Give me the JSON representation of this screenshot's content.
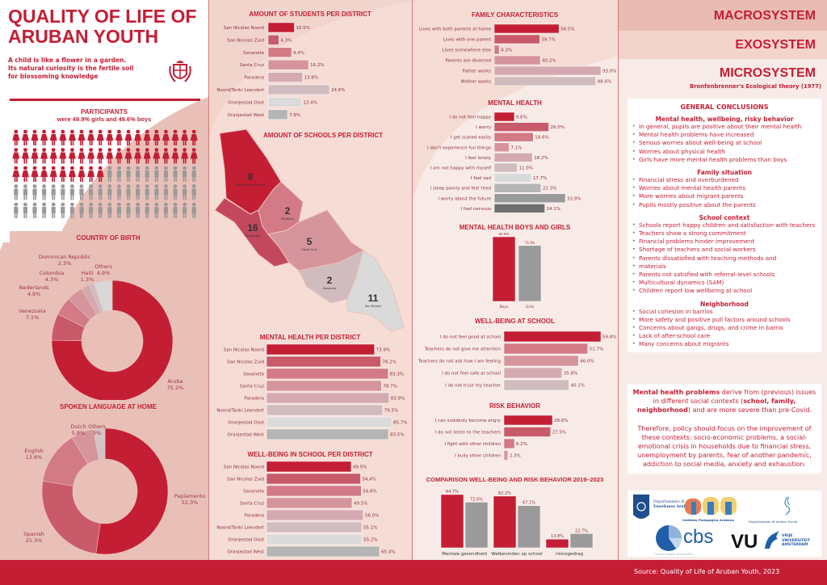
{
  "header": {
    "title_line1": "QUALITY OF LIFE OF",
    "title_line2": "ARUBAN YOUTH",
    "tagline_line1": "A child is like a flower in a garden.",
    "tagline_line2": "Its natural curiosity is the fertile soil",
    "tagline_line3": "for blossoming knowledge",
    "emblem_icon": "aruba-coat-of-arms-icon"
  },
  "participants": {
    "title": "PARTICIPANTS",
    "subtitle": "were 49.9% girls and 49.6% boys",
    "girls_icons": 50,
    "boys_icons": 50,
    "girl_icon": "girl-figure-icon",
    "boy_icon": "boy-figure-icon"
  },
  "colors": {
    "primary": "#c41e35",
    "shade2": "#c85a6a",
    "shade3": "#d27a86",
    "shade4": "#d6949c",
    "shade5": "#d4aab0",
    "shade6": "#d0bcbf",
    "shade7": "#dadada",
    "shade8": "#b5b5b5",
    "grey_mid": "#9a9a9a",
    "grey_dark": "#707070",
    "footer": "#c41e35"
  },
  "systems": {
    "macro": "MACROSYSTEM",
    "exo": "EXOSYSTEM",
    "micro": "MICROSYSTEM",
    "theory": "Bronfenbrenner's Ecological theory (1977)"
  },
  "conclusions": {
    "title": "GENERAL CONCLUSIONS",
    "sections": [
      {
        "heading": "Mental health, wellbeing, risky behavior",
        "items": [
          "In general, pupils are positive about their mental health",
          "Mental health problems have increased",
          "Serious worries about well-being at school",
          "Worries about physical health",
          "Girls have more mental health problems than boys"
        ]
      },
      {
        "heading": "Family situation",
        "items": [
          "Financial stress and overburdened",
          "Worries about mental health parents",
          "More worries about migrant parents",
          "Pupils mostly positive about the parents"
        ]
      },
      {
        "heading": "School context",
        "items": [
          "Schools report happy children and satisfaction with teachers",
          "Teachers show a strong commitment",
          "Financial problems hinder improvement",
          "Shortage of teachers and social workers",
          "Parents dissatisfied with teaching methods and",
          "materials",
          "Parents not satisfied with referral-level schools",
          "Multicultural dynamics (SAM)",
          "Children report low wellbeing at school"
        ]
      },
      {
        "heading": "Neighborhood",
        "items": [
          "Social cohesion in barrios",
          "More safety and positive pull factors around schools",
          "Concerns about gangs, drugs, and crime in barrio",
          "Lack of after-school care",
          "Many concerns about migrants"
        ]
      }
    ]
  },
  "message": {
    "p1_bold1": "Mental health problems",
    "p1_text1": " derive from (previous) issues in different social contexts (",
    "p1_bold2": "school, family, neighborhood",
    "p1_text2": ") and are more severe than pre-Covid.",
    "p2": "Therefore, policy should focus on the improvement of these contexts: socio-economic problems, a social-emotional crisis in households due to financial stress, unemployment by parents, fear of another pandemic, addiction to social media, anxiety and exhaustion."
  },
  "logos": {
    "dea_line1": "Departamento di",
    "dea_line2": "Enseñansa Aruba",
    "ipa": "Instituto Pedagogico Arubano",
    "das": "Departamento di Asunto Social",
    "cbs": "cbs",
    "cbs_sub": "central bureau of statistics",
    "vu": "VU",
    "vu_line1": "VRIJE",
    "vu_line2": "UNIVERSITEIT",
    "vu_line3": "AMSTERDAM"
  },
  "footer": {
    "source": "Source: Quality of Life of Aruban Youth, 2023"
  },
  "map": {
    "title": "AMOUNT OF SCHOOLS PER DISTRICT",
    "regions": [
      {
        "name": "Noord/Tanki Leendert",
        "count": "8"
      },
      {
        "name": "Paradera",
        "count": "2"
      },
      {
        "name": "Oranjestad",
        "count": "16"
      },
      {
        "name": "Santa Cruz",
        "count": "5"
      },
      {
        "name": "Savaneta",
        "count": "2"
      },
      {
        "name": "San Nicolas",
        "count": "11"
      }
    ]
  },
  "chart_data": [
    {
      "id": "birth",
      "type": "pie",
      "title": "COUNTRY OF BIRTH",
      "slices": [
        {
          "label": "Aruba",
          "value": 75.2,
          "display": "75.2%"
        },
        {
          "label": "Venezuela",
          "value": 7.1,
          "display": "7.1%"
        },
        {
          "label": "Nederlands",
          "value": 4.9,
          "display": "4.9%"
        },
        {
          "label": "Colombia",
          "value": 4.3,
          "display": "4.3%"
        },
        {
          "label": "Dominican Republic",
          "value": 2.3,
          "display": "2.3%"
        },
        {
          "label": "Haiti",
          "value": 1.3,
          "display": "1.3%"
        },
        {
          "label": "Others",
          "value": 4.9,
          "display": "4.9%"
        }
      ]
    },
    {
      "id": "language",
      "type": "pie",
      "title": "SPOKEN LANGUAGE AT HOME",
      "slices": [
        {
          "label": "Papiamento",
          "value": 52.3,
          "display": "52.3%"
        },
        {
          "label": "Spanish",
          "value": 25.3,
          "display": "25.3%"
        },
        {
          "label": "English",
          "value": 13.6,
          "display": "13.6%"
        },
        {
          "label": "Dutch",
          "value": 5.8,
          "display": "5.8%"
        },
        {
          "label": "Others",
          "value": 3,
          "display": "3%"
        }
      ]
    },
    {
      "id": "students",
      "type": "bar",
      "orientation": "horizontal",
      "title": "AMOUNT OF STUDENTS PER DISTRICT",
      "categories": [
        "San Nicolas Noord",
        "San Nicolas Zuid",
        "Savaneta",
        "Santa Cruz",
        "Paradera",
        "Noord/Tanki Leendert",
        "Oranjestad Oost",
        "Oranjestad West"
      ],
      "values": [
        10.5,
        4.3,
        9.4,
        16.2,
        13.8,
        24.6,
        13.4,
        7.8
      ],
      "unit": "%",
      "xlim": [
        0,
        24.6
      ]
    },
    {
      "id": "family",
      "type": "bar",
      "orientation": "horizontal",
      "title": "FAMILY CHARACTERISTICS",
      "categories": [
        "Lives with both parents at home",
        "Lives with one parent",
        "Lives somewhere else",
        "Parents are divorced",
        "Father works",
        "Mother works"
      ],
      "values": [
        56.5,
        39.7,
        4.3,
        40.2,
        93.0,
        88.6
      ],
      "unit": "%",
      "xlim": [
        0,
        93
      ]
    },
    {
      "id": "mental",
      "type": "bar",
      "orientation": "horizontal",
      "title": "MENTAL HEALTH",
      "categories": [
        "I do not feel happy",
        "I worry",
        "I get scared easily",
        "I don't experience fun things",
        "I feel lonely",
        "I am not happy with myself",
        "I feel sad",
        "I sleep poorly and feel tired",
        "I worry about the future",
        "I feel nervous"
      ],
      "values": [
        9.6,
        26.0,
        18.6,
        7.1,
        18.2,
        11.0,
        17.7,
        22.3,
        33.9,
        24.1
      ],
      "unit": "%",
      "xlim": [
        0,
        33.9
      ]
    },
    {
      "id": "boysgirls",
      "type": "bar",
      "orientation": "vertical",
      "title": "MENTAL HEALTH BOYS AND GIRLS",
      "categories": [
        "Boys",
        "Girls"
      ],
      "values": [
        84.8,
        73.3
      ],
      "unit": "%",
      "ylim": [
        0,
        84.8
      ]
    },
    {
      "id": "wellschool",
      "type": "bar",
      "orientation": "horizontal",
      "title": "WELL-BEING AT SCHOOL",
      "categories": [
        "I do not feel good at school",
        "Teachers do not give me attention",
        "Teachers do not ask how I am feeling",
        "I do not feel safe at school",
        "I do not trust my teacher"
      ],
      "values": [
        59.8,
        51.7,
        46.0,
        35.8,
        40.1
      ],
      "unit": "%",
      "xlim": [
        0,
        59.8
      ]
    },
    {
      "id": "mhdistrict",
      "type": "bar",
      "orientation": "horizontal",
      "title": "MENTAL HEALTH PER DISTRICT",
      "categories": [
        "San Nicolas Noord",
        "San Nicolas Zuid",
        "Savaneta",
        "Santa Cruz",
        "Paradera",
        "Noord/Tanki Leendert",
        "Oranjestad Oost",
        "Oranjestad West"
      ],
      "values": [
        73.9,
        78.2,
        83.3,
        78.7,
        83.9,
        79.5,
        85.7,
        83.5
      ],
      "unit": "%",
      "xlim": [
        0,
        85.7
      ]
    },
    {
      "id": "wbdistrict",
      "type": "bar",
      "orientation": "horizontal",
      "title": "WELL-BEING IN SCHOOL PER DISTRICT",
      "categories": [
        "San Nicolas Noord",
        "San Nicolas Zuid",
        "Savaneta",
        "Santa Cruz",
        "Paradera",
        "Noord/Tanki Leendert",
        "Oranjestad Oost",
        "Oranjestad West"
      ],
      "values": [
        49.0,
        54.4,
        54.8,
        49.5,
        56.0,
        55.1,
        55.2,
        65.4
      ],
      "unit": "%",
      "xlim": [
        0,
        65.4
      ]
    },
    {
      "id": "risk",
      "type": "bar",
      "orientation": "horizontal",
      "title": "RISK BEHAVIOR",
      "categories": [
        "I can suddenly become angry",
        "I do not listen to the teachers",
        "I fight with other children",
        "I bully other children"
      ],
      "values": [
        28.6,
        27.5,
        6.2,
        2.3
      ],
      "unit": "%",
      "xlim": [
        0,
        28.6
      ]
    },
    {
      "id": "comparison",
      "type": "bar",
      "orientation": "vertical",
      "title": "COMPARISON WELL-BEING AND RISK BEHAVIOR 2019–2023",
      "categories": [
        "Mentale gezondheid",
        "Welbevinden op school",
        "risicogedrag"
      ],
      "series": [
        {
          "name": "2019",
          "values": [
            84.7,
            82.2,
            13.8
          ]
        },
        {
          "name": "2023",
          "values": [
            72.6,
            67.1,
            22.7
          ]
        }
      ],
      "ylim": [
        0,
        84.7
      ]
    }
  ]
}
